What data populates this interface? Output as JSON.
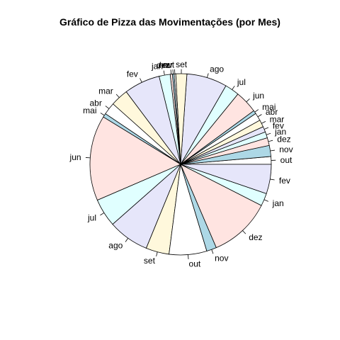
{
  "chart_data": {
    "type": "pie",
    "title": "Gráfico de Pizza das Movimentações (por Mes)",
    "direction": "counterclockwise",
    "start_angle_deg": 0,
    "slices": [
      {
        "label": "out",
        "value": 1.4,
        "color": "#ffffff"
      },
      {
        "label": "nov",
        "value": 2.0,
        "color": "#add8e6"
      },
      {
        "label": "dez",
        "value": 1.4,
        "color": "#ffe4e1"
      },
      {
        "label": "jan",
        "value": 1.1,
        "color": "#e0ffff"
      },
      {
        "label": "fev",
        "value": 1.0,
        "color": "#e6e6fa"
      },
      {
        "label": "mar",
        "value": 1.3,
        "color": "#fff8dc"
      },
      {
        "label": "abr",
        "value": 1.4,
        "color": "#ffffff"
      },
      {
        "label": "mai",
        "value": 0.6,
        "color": "#add8e6"
      },
      {
        "label": "jun",
        "value": 4.1,
        "color": "#ffe4e1"
      },
      {
        "label": "jul",
        "value": 2.6,
        "color": "#e0ffff"
      },
      {
        "label": "ago",
        "value": 7.3,
        "color": "#e6e6fa"
      },
      {
        "label": "set",
        "value": 2.0,
        "color": "#fff8dc"
      },
      {
        "label": "out",
        "value": 0.3,
        "color": "#ffffff"
      },
      {
        "label": "nov",
        "value": 0.3,
        "color": "#add8e6"
      },
      {
        "label": "dez",
        "value": 0.4,
        "color": "#ffe4e1"
      },
      {
        "label": "jan",
        "value": 2.0,
        "color": "#e0ffff"
      },
      {
        "label": "fev",
        "value": 6.5,
        "color": "#e6e6fa"
      },
      {
        "label": "mar",
        "value": 3.2,
        "color": "#fff8dc"
      },
      {
        "label": "abr",
        "value": 2.2,
        "color": "#ffffff"
      },
      {
        "label": "mai",
        "value": 0.7,
        "color": "#add8e6"
      },
      {
        "label": "jun",
        "value": 15.4,
        "color": "#ffe4e1"
      },
      {
        "label": "jul",
        "value": 5.1,
        "color": "#e0ffff"
      },
      {
        "label": "ago",
        "value": 7.4,
        "color": "#e6e6fa"
      },
      {
        "label": "set",
        "value": 4.2,
        "color": "#fff8dc"
      },
      {
        "label": "out",
        "value": 6.8,
        "color": "#ffffff"
      },
      {
        "label": "nov",
        "value": 1.8,
        "color": "#add8e6"
      },
      {
        "label": "dez",
        "value": 11.2,
        "color": "#ffe4e1"
      },
      {
        "label": "jan",
        "value": 2.3,
        "color": "#e0ffff"
      },
      {
        "label": "fev",
        "value": 5.3,
        "color": "#e6e6fa"
      }
    ]
  }
}
